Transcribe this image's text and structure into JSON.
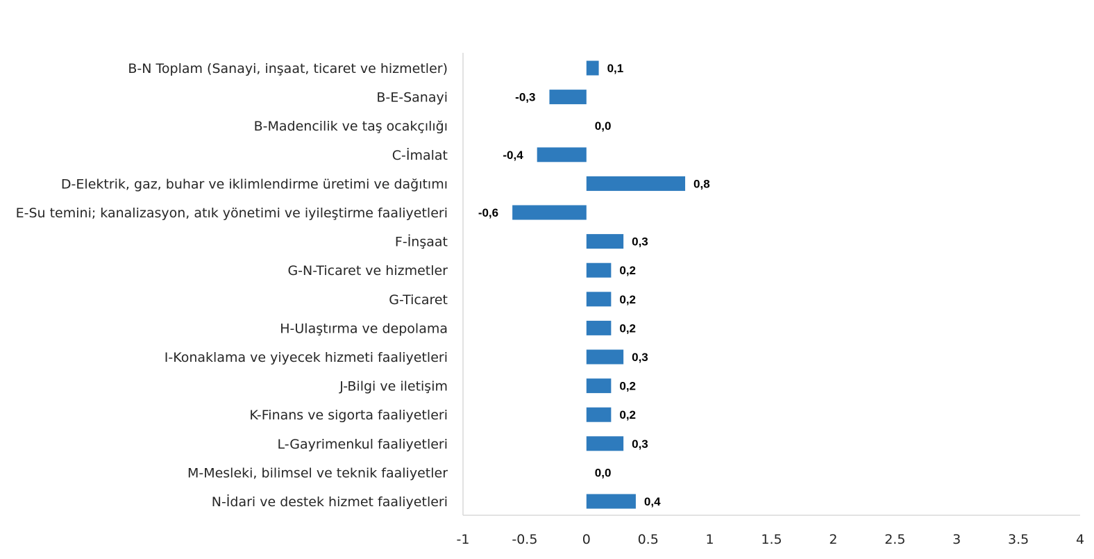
{
  "chart_data": {
    "type": "bar",
    "orientation": "horizontal",
    "categories": [
      "B-N Toplam (Sanayi, inşaat, ticaret ve hizmetler)",
      "B-E-Sanayi",
      "B-Madencilik ve taş ocakçılığı",
      "C-İmalat",
      "D-Elektrik, gaz, buhar ve iklimlendirme üretimi ve dağıtımı",
      "E-Su temini; kanalizasyon, atık yönetimi ve iyileştirme faaliyetleri",
      "F-İnşaat",
      "G-N-Ticaret ve hizmetler",
      "G-Ticaret",
      "H-Ulaştırma ve depolama",
      "I-Konaklama ve yiyecek hizmeti faaliyetleri",
      "J-Bilgi ve iletişim",
      "K-Finans ve sigorta faaliyetleri",
      "L-Gayrimenkul faaliyetleri",
      "M-Mesleki, bilimsel ve teknik faaliyetler",
      "N-İdari ve destek hizmet faaliyetleri"
    ],
    "values": [
      0.1,
      -0.3,
      0.0,
      -0.4,
      0.8,
      -0.6,
      0.3,
      0.2,
      0.2,
      0.2,
      0.3,
      0.2,
      0.2,
      0.3,
      0.0,
      0.4
    ],
    "data_labels": [
      "0,1",
      "-0,3",
      "0,0",
      "-0,4",
      "0,8",
      "-0,6",
      "0,3",
      "0,2",
      "0,2",
      "0,2",
      "0,3",
      "0,2",
      "0,2",
      "0,3",
      "0,0",
      "0,4"
    ],
    "xlim": [
      -1,
      4
    ],
    "xticks": [
      -1,
      -0.5,
      0,
      0.5,
      1,
      1.5,
      2,
      2.5,
      3,
      3.5,
      4
    ],
    "xtick_labels": [
      "-1",
      "-0.5",
      "0",
      "0.5",
      "1",
      "1.5",
      "2",
      "2.5",
      "3",
      "3.5",
      "4"
    ],
    "grid": false,
    "title": "",
    "xlabel": "",
    "ylabel": "",
    "colors": {
      "bar": "#2e7bbd",
      "axis": "#d9d9d9"
    }
  }
}
